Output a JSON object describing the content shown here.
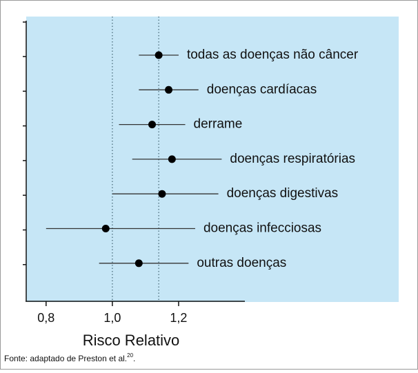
{
  "chart_data": {
    "type": "forest",
    "x_label": "Risco Relativo",
    "source": "Fonte: adaptado de Preston et al.",
    "source_ref": "20",
    "source_end": ".",
    "categories": [
      "todas as doenças não câncer",
      "doenças cardíacas",
      "derrame",
      "doenças respiratórias",
      "doenças digestivas",
      "doenças infecciosas",
      "outras doenças"
    ],
    "values": [
      1.14,
      1.17,
      1.12,
      1.18,
      1.15,
      0.98,
      1.08
    ],
    "lower": [
      1.08,
      1.08,
      1.02,
      1.06,
      1.0,
      0.8,
      0.96
    ],
    "upper": [
      1.2,
      1.26,
      1.22,
      1.33,
      1.32,
      1.25,
      1.23
    ],
    "color": "#000000",
    "background": "#c6e6f6",
    "reference_lines": [
      1.0,
      1.14
    ],
    "xlim": [
      0.74,
      1.4
    ],
    "xticks": [
      {
        "value": 0.8,
        "label": "0,8"
      },
      {
        "value": 1.0,
        "label": "1,0"
      },
      {
        "value": 1.2,
        "label": "1,2"
      }
    ]
  }
}
